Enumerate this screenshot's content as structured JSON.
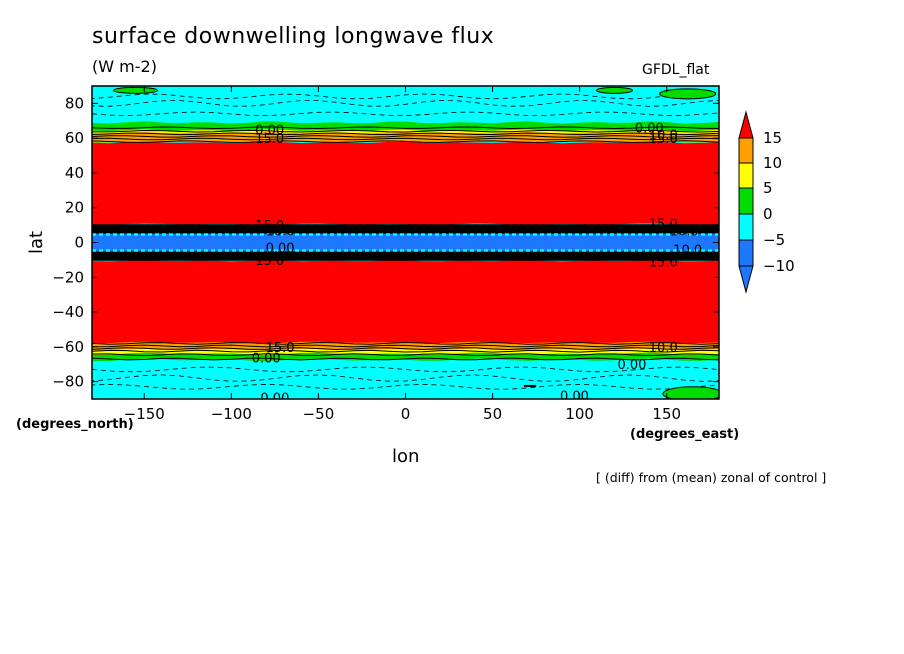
{
  "chart_data": {
    "type": "heatmap",
    "title": "surface downwelling longwave flux",
    "subtitle": "(W m-2)",
    "model_label": "GFDL_flat",
    "xlabel": "lon",
    "ylabel": "lat",
    "x_units": "(degrees_east)",
    "y_units": "(degrees_north)",
    "note": "[ (diff) from (mean) zonal of control ]",
    "xlim": [
      -180,
      180
    ],
    "ylim": [
      -90,
      90
    ],
    "x_ticks": [
      -150,
      -100,
      -50,
      0,
      50,
      100,
      150
    ],
    "y_ticks": [
      -80,
      -60,
      -40,
      -20,
      0,
      20,
      40,
      60,
      80
    ],
    "colorbar": {
      "levels": [
        -10,
        -5,
        0,
        5,
        10,
        15
      ],
      "labels": [
        "15",
        "10",
        "5",
        "0",
        "-5",
        "-10"
      ],
      "colors": {
        "below_-10": "#1e78ff",
        "-10_-5": "#1e78ff",
        "-5_0": "#00ffff",
        "0_5": "#00dc00",
        "5_10": "#ffff00",
        "10_15": "#ffa000",
        "above_15": "#ff0000"
      }
    },
    "zonal_bands": [
      {
        "lat_from": 90,
        "lat_to": 68,
        "value_range": "-5 to 0"
      },
      {
        "lat_from": 68,
        "lat_to": 60,
        "value_range": "0 to 15 (gradient)"
      },
      {
        "lat_from": 57,
        "lat_to": 10,
        "value_range": "> 15"
      },
      {
        "lat_from": 10,
        "lat_to": 5,
        "value_range": "contour-dense band"
      },
      {
        "lat_from": 5,
        "lat_to": -5,
        "value_range": "< -10"
      },
      {
        "lat_from": -5,
        "lat_to": -10,
        "value_range": "contour-dense band"
      },
      {
        "lat_from": -10,
        "lat_to": -57,
        "value_range": "> 15"
      },
      {
        "lat_from": -57,
        "lat_to": -67,
        "value_range": "0 to 15 (gradient)"
      },
      {
        "lat_from": -67,
        "lat_to": -90,
        "value_range": "-5 to 0"
      }
    ],
    "contour_labels": [
      {
        "text": "0.00",
        "lon": -78,
        "lat": 65
      },
      {
        "text": "0.00",
        "lon": 140,
        "lat": 66
      },
      {
        "text": "10.0",
        "lon": 148,
        "lat": 62
      },
      {
        "text": "15.0",
        "lon": -78,
        "lat": 60
      },
      {
        "text": "15.0",
        "lon": 148,
        "lat": 60
      },
      {
        "text": "15.0",
        "lon": -78,
        "lat": 10
      },
      {
        "text": "15.0",
        "lon": 148,
        "lat": 11
      },
      {
        "text": "10.0",
        "lon": -72,
        "lat": 7
      },
      {
        "text": "10.0",
        "lon": 160,
        "lat": 7
      },
      {
        "text": "0.00",
        "lon": -72,
        "lat": -3
      },
      {
        "text": "10.0",
        "lon": 162,
        "lat": -4
      },
      {
        "text": "15.0",
        "lon": -78,
        "lat": -10
      },
      {
        "text": "15.0",
        "lon": 148,
        "lat": -11
      },
      {
        "text": "15.0",
        "lon": -72,
        "lat": -60
      },
      {
        "text": "10.0",
        "lon": 148,
        "lat": -60
      },
      {
        "text": "0.00",
        "lon": -80,
        "lat": -66
      },
      {
        "text": "0.00",
        "lon": 130,
        "lat": -70
      },
      {
        "text": "0.00",
        "lon": -75,
        "lat": -89
      },
      {
        "text": "0.00",
        "lon": 97,
        "lat": -88
      }
    ]
  },
  "labels": {
    "title": "surface downwelling longwave flux",
    "units": "(W m-2)",
    "model": "GFDL_flat",
    "xlabel": "lon",
    "ylabel": "lat",
    "xunit": "(degrees_east)",
    "yunit": "(degrees_north)",
    "note": "[ (diff) from (mean) zonal of control ]"
  }
}
